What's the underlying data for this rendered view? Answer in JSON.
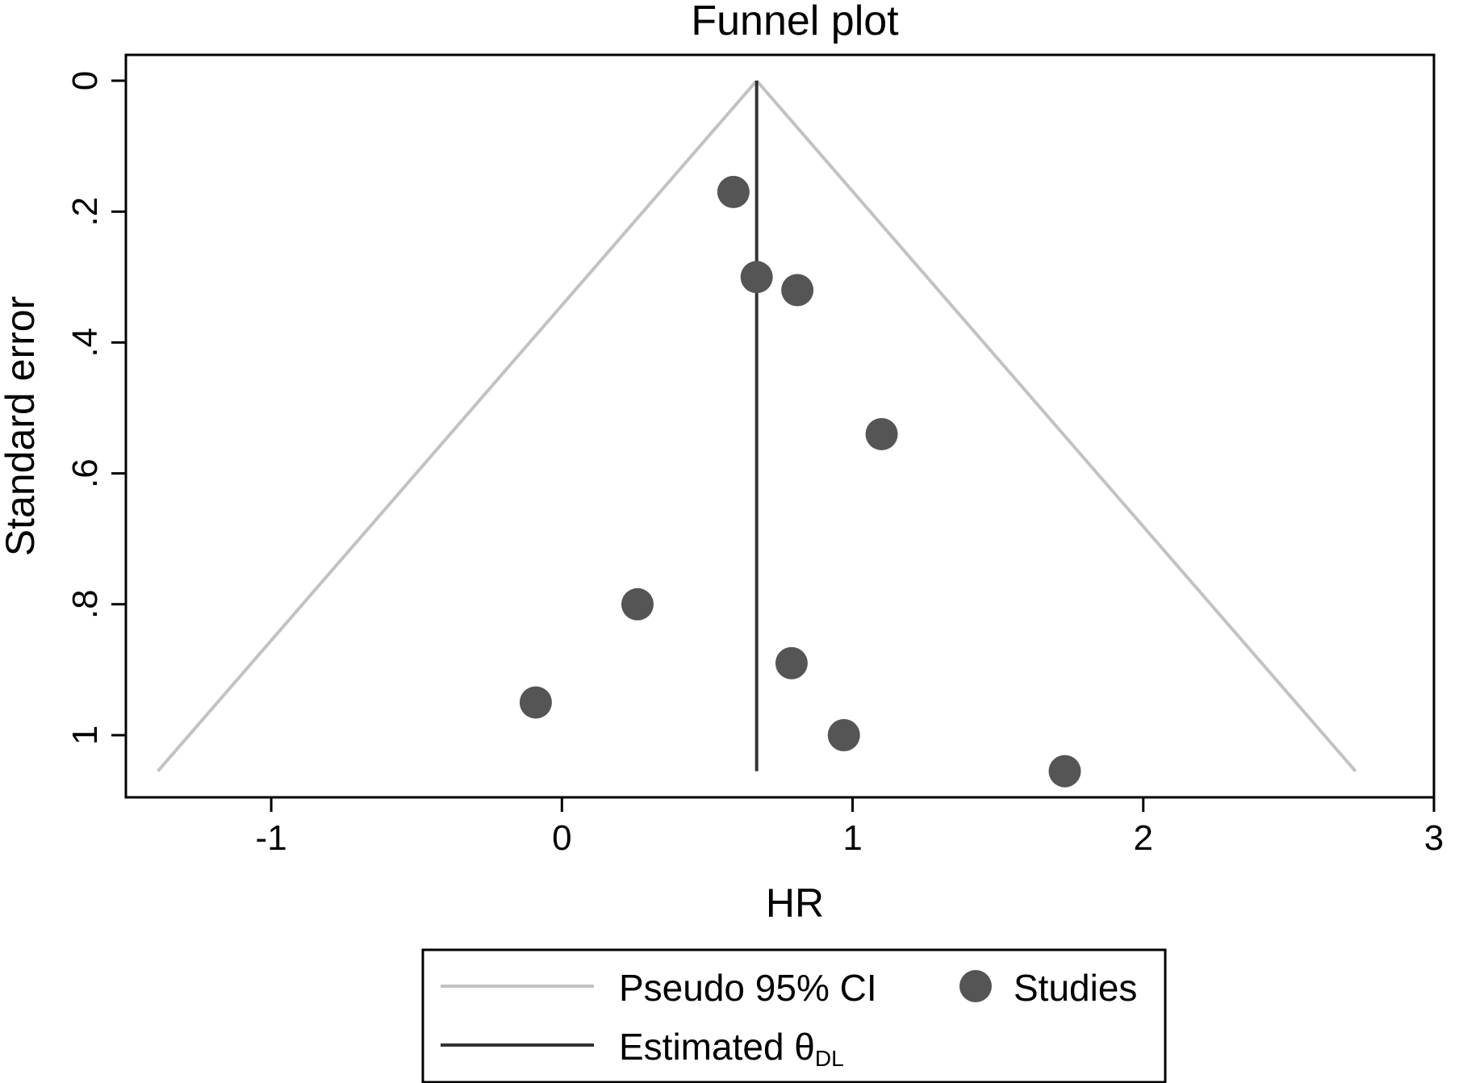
{
  "chart_data": {
    "type": "scatter",
    "title": "Funnel plot",
    "xlabel": "HR",
    "ylabel": "Standard error",
    "xlim": [
      -1.5,
      3.0
    ],
    "ylim": [
      0,
      1.1
    ],
    "y_reversed": true,
    "grid": false,
    "x_ticks": [
      {
        "value": -1,
        "label": "-1"
      },
      {
        "value": 0,
        "label": "0"
      },
      {
        "value": 1,
        "label": "1"
      },
      {
        "value": 2,
        "label": "2"
      },
      {
        "value": 3,
        "label": "3"
      }
    ],
    "y_ticks": [
      {
        "value": 0,
        "label": "0"
      },
      {
        "value": 0.2,
        "label": ".2"
      },
      {
        "value": 0.4,
        "label": ".4"
      },
      {
        "value": 0.6,
        "label": ".6"
      },
      {
        "value": 0.8,
        "label": ".8"
      },
      {
        "value": 1,
        "label": "1"
      }
    ],
    "estimate": 0.67,
    "funnel": {
      "apex": [
        0.67,
        0
      ],
      "left_base": [
        -1.39,
        1.055
      ],
      "right_base": [
        2.73,
        1.055
      ],
      "color": "#c2c2c2"
    },
    "studies": {
      "color": "#555555",
      "points": [
        {
          "x": 0.59,
          "y": 0.17
        },
        {
          "x": 0.67,
          "y": 0.3
        },
        {
          "x": 0.81,
          "y": 0.32
        },
        {
          "x": 1.1,
          "y": 0.54
        },
        {
          "x": 0.26,
          "y": 0.8
        },
        {
          "x": 0.79,
          "y": 0.89
        },
        {
          "x": -0.09,
          "y": 0.95
        },
        {
          "x": 0.97,
          "y": 1.0
        },
        {
          "x": 1.73,
          "y": 1.055
        }
      ]
    },
    "estimate_color": "#333333",
    "legend": {
      "placement": "bottom",
      "items": [
        {
          "label": "Pseudo 95% CI",
          "kind": "line",
          "color": "#c2c2c2"
        },
        {
          "label": "Studies",
          "kind": "marker",
          "color": "#555555"
        },
        {
          "label": "Estimated θ",
          "subscript": "DL",
          "kind": "line",
          "color": "#333333"
        }
      ]
    }
  }
}
